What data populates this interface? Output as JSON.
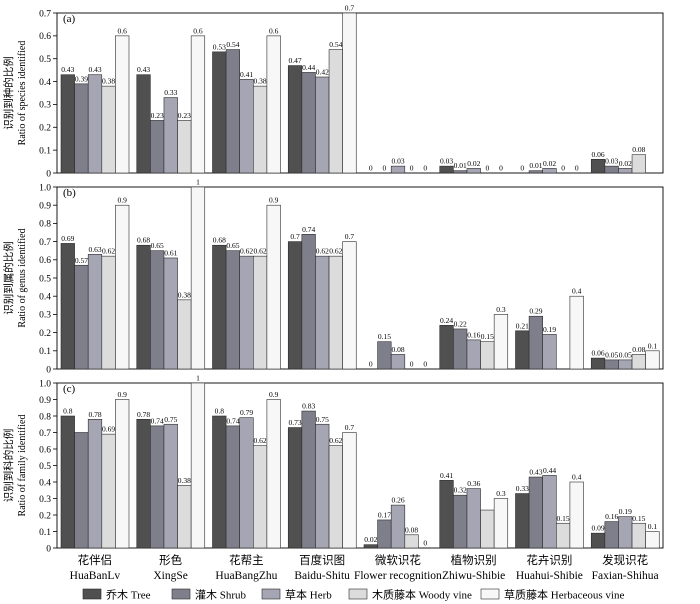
{
  "categories": [
    {
      "cn": "花伴侣",
      "en": "HuaBanLv"
    },
    {
      "cn": "形色",
      "en": "XingSe"
    },
    {
      "cn": "花帮主",
      "en": "HuaBangZhu"
    },
    {
      "cn": "百度识图",
      "en": "Baidu-Shitu"
    },
    {
      "cn": "微软识花",
      "en": "Flower recognition"
    },
    {
      "cn": "植物识别",
      "en": "Zhiwu-Shibie"
    },
    {
      "cn": "花卉识别",
      "en": "Huahui-Shibie"
    },
    {
      "cn": "发现识花",
      "en": "Faxian-Shihua"
    }
  ],
  "legend": [
    {
      "label": "乔木 Tree",
      "color": "#505050"
    },
    {
      "label": "灌木 Shrub",
      "color": "#7f7f8c"
    },
    {
      "label": "草本 Herb",
      "color": "#a5a5b4"
    },
    {
      "label": "木质藤本 Woody vine",
      "color": "#dcdcdc"
    },
    {
      "label": "草质藤本 Herbaceous vine",
      "color": "#f7f7f7"
    }
  ],
  "chart_data": [
    {
      "type": "bar",
      "panel_label": "(a)",
      "ylabel_cn": "识别到种的比例",
      "ylabel_en": "Ratio of species identified",
      "ylim": [
        0,
        0.7
      ],
      "yticks": [
        "0",
        "0.1",
        "0.2",
        "0.3",
        "0.4",
        "0.5",
        "0.6",
        "0.7"
      ],
      "series": [
        {
          "name": "乔木 Tree",
          "values": [
            0.43,
            0.43,
            0.53,
            0.47,
            0,
            0.03,
            0,
            0.06
          ],
          "labels": [
            "0.43",
            "0.43",
            "0.53",
            "0.47",
            "0",
            "0.03",
            "0",
            "0.06"
          ]
        },
        {
          "name": "灌木 Shrub",
          "values": [
            0.39,
            0.23,
            0.54,
            0.44,
            0,
            0.01,
            0.01,
            0.03
          ],
          "labels": [
            "0.39",
            "0.23",
            "0.54",
            "0.44",
            "0",
            "0.01",
            "0.01",
            "0.03"
          ]
        },
        {
          "name": "草本 Herb",
          "values": [
            0.43,
            0.33,
            0.41,
            0.42,
            0.03,
            0.02,
            0.02,
            0.02
          ],
          "labels": [
            "0.43",
            "0.33",
            "0.41",
            "0.42",
            "0.03",
            "0.02",
            "0.02",
            "0.02"
          ]
        },
        {
          "name": "木质藤本 Woody vine",
          "values": [
            0.38,
            0.23,
            0.38,
            0.54,
            0,
            0,
            0,
            0.08
          ],
          "labels": [
            "0.38",
            "0.23",
            "0.38",
            "0.54",
            "0",
            "0",
            "0",
            "0.08"
          ]
        },
        {
          "name": "草质藤本 Herbaceous vine",
          "values": [
            0.6,
            0.6,
            0.6,
            0.7,
            0,
            0,
            0,
            0
          ],
          "labels": [
            "0.6",
            "0.6",
            "0.6",
            "0.7",
            "0",
            "0",
            "0",
            ""
          ]
        }
      ]
    },
    {
      "type": "bar",
      "panel_label": "(b)",
      "ylabel_cn": "识别到属的比例",
      "ylabel_en": "Ratio of genus identified",
      "ylim": [
        0,
        1.0
      ],
      "yticks": [
        "0",
        "0.1",
        "0.2",
        "0.3",
        "0.4",
        "0.5",
        "0.6",
        "0.7",
        "0.8",
        "0.9",
        "1.0"
      ],
      "series": [
        {
          "name": "乔木 Tree",
          "values": [
            0.69,
            0.68,
            0.68,
            0.7,
            0,
            0.24,
            0.21,
            0.06
          ],
          "labels": [
            "0.69",
            "0.68",
            "0.68",
            "0.7",
            "0",
            "0.24",
            "0.21",
            "0.06"
          ]
        },
        {
          "name": "灌木 Shrub",
          "values": [
            0.57,
            0.65,
            0.65,
            0.74,
            0.15,
            0.22,
            0.29,
            0.05
          ],
          "labels": [
            "0.57",
            "0.65",
            "0.65",
            "0.74",
            "0.15",
            "0.22",
            "0.29",
            "0.05"
          ]
        },
        {
          "name": "草本 Herb",
          "values": [
            0.63,
            0.61,
            0.62,
            0.62,
            0.08,
            0.16,
            0.19,
            0.05
          ],
          "labels": [
            "0.63",
            "0.61",
            "0.62",
            "0.62",
            "0.08",
            "0.16",
            "0.19",
            "0.05"
          ]
        },
        {
          "name": "木质藤本 Woody vine",
          "values": [
            0.62,
            0.38,
            0.62,
            0.62,
            0,
            0.15,
            0,
            0.08
          ],
          "labels": [
            "0.62",
            "0.38",
            "0.62",
            "0.62",
            "0",
            "0.15",
            "",
            "0.08"
          ]
        },
        {
          "name": "草质藤本 Herbaceous vine",
          "values": [
            0.9,
            1.0,
            0.9,
            0.7,
            0,
            0.3,
            0.4,
            0.1
          ],
          "labels": [
            "0.9",
            "1",
            "0.9",
            "0.7",
            "0",
            "0.3",
            "0.4",
            "0.1"
          ]
        }
      ]
    },
    {
      "type": "bar",
      "panel_label": "(c)",
      "ylabel_cn": "识别到科的比例",
      "ylabel_en": "Ratio of family identified",
      "ylim": [
        0,
        1.0
      ],
      "yticks": [
        "0",
        "0.1",
        "0.2",
        "0.3",
        "0.4",
        "0.5",
        "0.6",
        "0.7",
        "0.8",
        "0.9",
        "1.0"
      ],
      "series": [
        {
          "name": "乔木 Tree",
          "values": [
            0.8,
            0.78,
            0.8,
            0.73,
            0.02,
            0.41,
            0.33,
            0.09
          ],
          "labels": [
            "0.8",
            "0.78",
            "0.8",
            "0.73",
            "0.02",
            "0.41",
            "0.33",
            "0.09"
          ]
        },
        {
          "name": "灌木 Shrub",
          "values": [
            0.7,
            0.74,
            0.74,
            0.83,
            0.17,
            0.32,
            0.43,
            0.16
          ],
          "labels": [
            "",
            "0.74",
            "0.74",
            "0.83",
            "0.17",
            "0.32",
            "0.43",
            "0.16"
          ]
        },
        {
          "name": "草本 Herb",
          "values": [
            0.78,
            0.75,
            0.79,
            0.75,
            0.26,
            0.36,
            0.44,
            0.19
          ],
          "labels": [
            "0.78",
            "0.75",
            "0.79",
            "0.75",
            "0.26",
            "0.36",
            "0.44",
            "0.19"
          ]
        },
        {
          "name": "木质藤本 Woody vine",
          "values": [
            0.69,
            0.38,
            0.62,
            0.62,
            0.08,
            0.23,
            0.15,
            0.15
          ],
          "labels": [
            "0.69",
            "0.38",
            "0.62",
            "0.62",
            "0.08",
            "",
            "0.15",
            "0.15"
          ]
        },
        {
          "name": "草质藤本 Herbaceous vine",
          "values": [
            0.9,
            1.0,
            0.9,
            0.7,
            0,
            0.3,
            0.4,
            0.1
          ],
          "labels": [
            "0.9",
            "1",
            "0.9",
            "0.7",
            "0",
            "0.3",
            "0.4",
            "0.1"
          ]
        }
      ]
    }
  ]
}
